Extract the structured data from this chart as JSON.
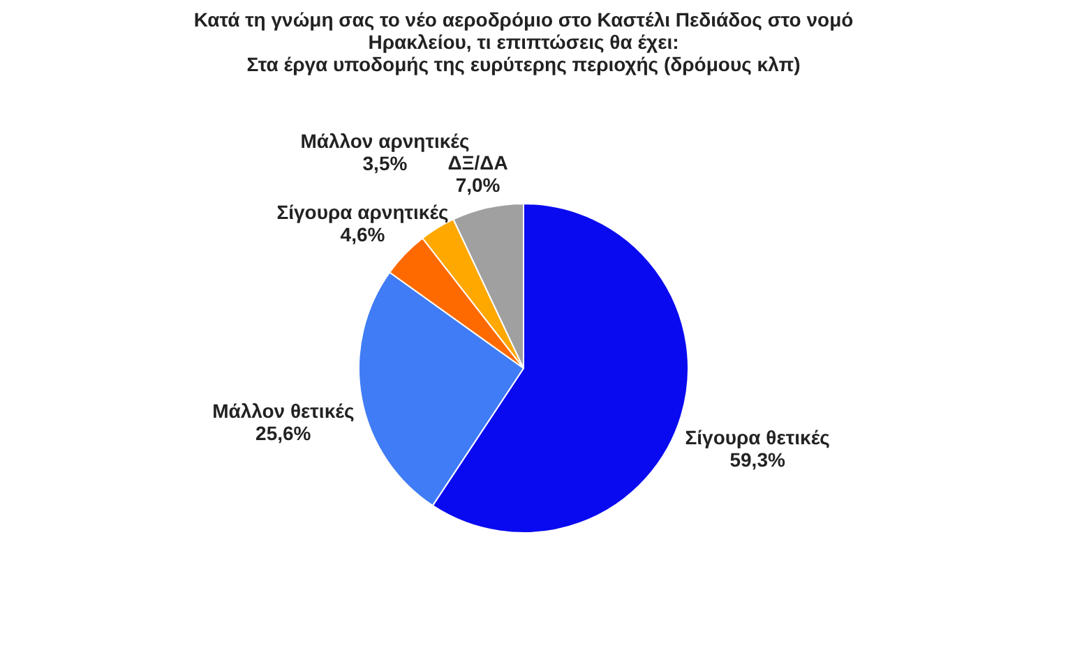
{
  "chart_data": {
    "type": "pie",
    "title": "Κατά τη γνώμη σας το νέο αεροδρόμιο στο Καστέλι Πεδιάδος στο νομό\nΗρακλείου, τι επιπτώσεις θα έχει:\nΣτα έργα υποδομής της ευρύτερης περιοχής (δρόμους κλπ)",
    "categories": [
      "Σίγουρα θετικές",
      "Μάλλον θετικές",
      "Σίγουρα αρνητικές",
      "Μάλλον αρνητικές",
      "ΔΞ/ΔΑ"
    ],
    "values": [
      59.3,
      25.6,
      4.6,
      3.5,
      7.0
    ],
    "value_labels": [
      "59,3%",
      "25,6%",
      "4,6%",
      "3,5%",
      "7,0%"
    ],
    "colors": [
      "#0a0af0",
      "#3f7cf5",
      "#ff6a00",
      "#ffa800",
      "#a0a0a0"
    ]
  }
}
